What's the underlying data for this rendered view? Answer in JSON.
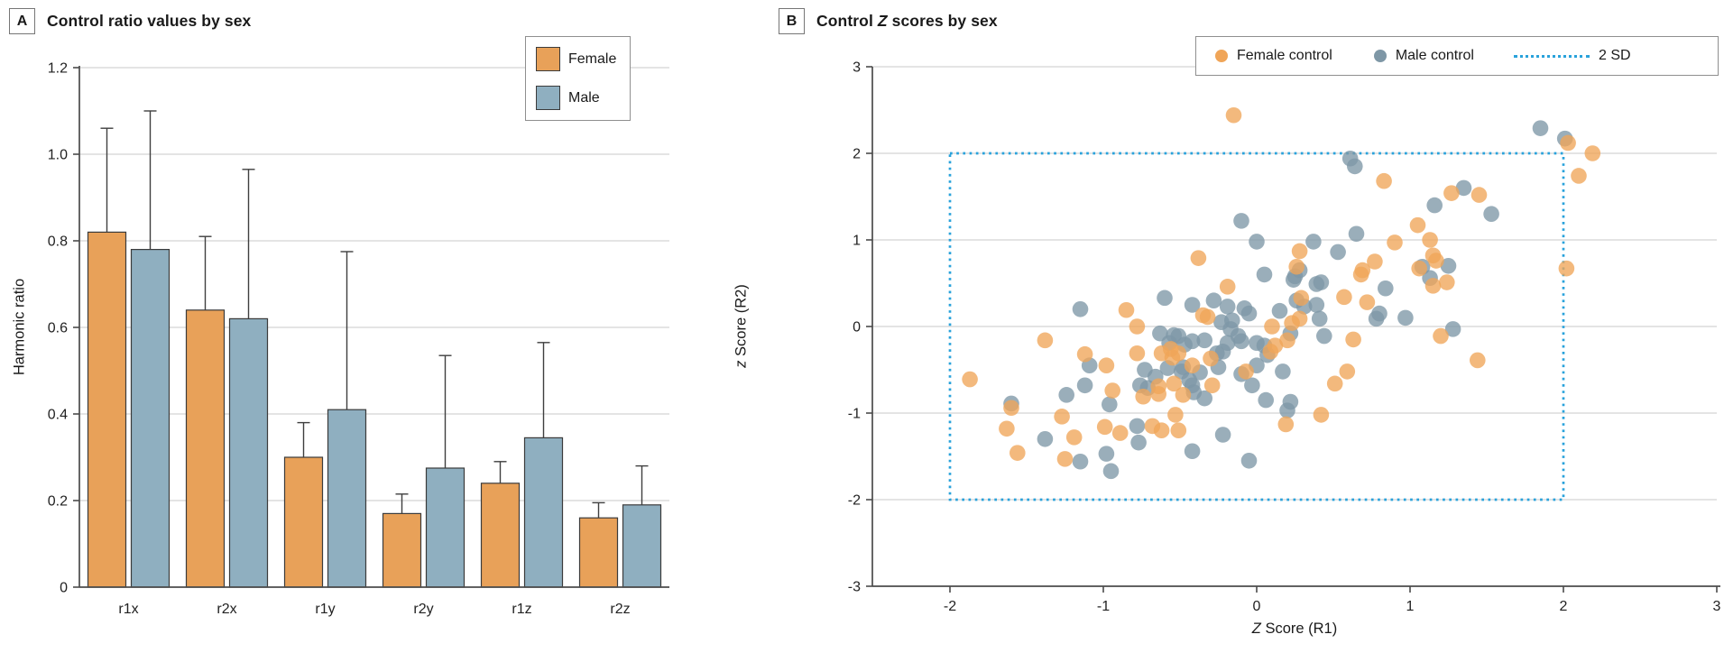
{
  "panel_a": {
    "label": "A",
    "title": "Control ratio values by sex",
    "y_axis_label": "Harmonic ratio",
    "legend": {
      "female_label": "Female",
      "male_label": "Male"
    }
  },
  "panel_b": {
    "label": "B",
    "title_prefix": "Control ",
    "title_italic": "Z",
    "title_suffix": " scores by sex",
    "y_axis_label_italic": "z",
    "y_axis_label_rest": " Score (R2)",
    "x_axis_label_italic": "Z",
    "x_axis_label_rest": " Score (R1)",
    "legend": {
      "female_label": "Female control",
      "male_label": "Male control",
      "sd_label": "2 SD"
    }
  },
  "colors": {
    "female_bar": "#e8a159",
    "male_bar": "#8fafc0",
    "bar_border": "#3b3b3b",
    "female_dot": "#f0a558",
    "male_dot": "#7e97a6",
    "sd_line": "#29a2db",
    "grid": "#dcdcdc",
    "axis": "#4b4b4b",
    "error_bar": "#3f3f3f",
    "tick_text": "#222222"
  },
  "chart_data": [
    {
      "type": "bar",
      "title": "Control ratio values by sex",
      "xlabel": "",
      "ylabel": "Harmonic ratio",
      "ylim": [
        0,
        1.2
      ],
      "yticks": [
        0,
        0.2,
        0.4,
        0.6,
        0.8,
        1.0,
        1.2
      ],
      "ytick_labels": [
        "0",
        "0.2",
        "0.4",
        "0.6",
        "0.8",
        "1.0",
        "1.2"
      ],
      "grid": "horizontal",
      "legend_position": "top-right",
      "categories": [
        "r1x",
        "r2x",
        "r1y",
        "r2y",
        "r1z",
        "r2z"
      ],
      "series": [
        {
          "name": "Female",
          "values": [
            0.82,
            0.64,
            0.3,
            0.17,
            0.24,
            0.16
          ],
          "error_top": [
            1.06,
            0.81,
            0.38,
            0.215,
            0.29,
            0.195
          ]
        },
        {
          "name": "Male",
          "values": [
            0.78,
            0.62,
            0.41,
            0.275,
            0.345,
            0.19
          ],
          "error_top": [
            1.1,
            0.965,
            0.775,
            0.535,
            0.565,
            0.28
          ]
        }
      ]
    },
    {
      "type": "scatter",
      "title": "Control Z scores by sex",
      "xlabel": "Z Score (R1)",
      "ylabel": "z Score (R2)",
      "xlim": [
        -2.5,
        3
      ],
      "ylim": [
        -3,
        3
      ],
      "xticks": [
        -2,
        -1,
        0,
        1,
        2,
        3
      ],
      "xtick_labels": [
        "-2",
        "-1",
        "0",
        "1",
        "2",
        "3"
      ],
      "yticks": [
        3,
        2,
        1,
        0,
        -1,
        -2,
        -3
      ],
      "ytick_labels": [
        "3",
        "2",
        "1",
        "0",
        "-1",
        "-2",
        "-3"
      ],
      "grid": "horizontal",
      "legend_position": "top-right",
      "sd_box": {
        "label": "2 SD",
        "x": [
          -2,
          2
        ],
        "y": [
          -2,
          2
        ]
      },
      "series": [
        {
          "name": "Female control",
          "points": [
            [
              -0.15,
              2.44
            ],
            [
              2.19,
              2.0
            ],
            [
              2.03,
              2.12
            ],
            [
              2.1,
              1.74
            ],
            [
              0.83,
              1.68
            ],
            [
              1.27,
              1.54
            ],
            [
              1.45,
              1.52
            ],
            [
              1.05,
              1.17
            ],
            [
              0.28,
              0.87
            ],
            [
              0.9,
              0.97
            ],
            [
              1.13,
              1.0
            ],
            [
              1.15,
              0.82
            ],
            [
              1.17,
              0.76
            ],
            [
              2.02,
              0.67
            ],
            [
              0.77,
              0.75
            ],
            [
              0.68,
              0.6
            ],
            [
              0.26,
              0.69
            ],
            [
              -0.38,
              0.79
            ],
            [
              0.57,
              0.34
            ],
            [
              0.72,
              0.28
            ],
            [
              0.28,
              0.09
            ],
            [
              -0.85,
              0.19
            ],
            [
              -0.78,
              0.0
            ],
            [
              -0.32,
              0.11
            ],
            [
              -0.35,
              0.13
            ],
            [
              -0.19,
              0.46
            ],
            [
              0.69,
              0.65
            ],
            [
              1.06,
              0.67
            ],
            [
              1.15,
              0.47
            ],
            [
              1.24,
              0.51
            ],
            [
              0.29,
              0.33
            ],
            [
              0.23,
              0.04
            ],
            [
              0.2,
              -0.16
            ],
            [
              0.12,
              -0.22
            ],
            [
              0.09,
              -0.29
            ],
            [
              1.2,
              -0.11
            ],
            [
              1.44,
              -0.39
            ],
            [
              0.63,
              -0.15
            ],
            [
              0.59,
              -0.52
            ],
            [
              0.51,
              -0.66
            ],
            [
              0.42,
              -1.02
            ],
            [
              0.19,
              -1.13
            ],
            [
              -0.07,
              -0.52
            ],
            [
              -1.87,
              -0.61
            ],
            [
              -1.38,
              -0.16
            ],
            [
              -1.12,
              -0.32
            ],
            [
              -0.98,
              -0.45
            ],
            [
              -0.94,
              -0.74
            ],
            [
              -1.6,
              -0.94
            ],
            [
              -1.63,
              -1.18
            ],
            [
              -1.56,
              -1.46
            ],
            [
              -1.27,
              -1.04
            ],
            [
              -1.19,
              -1.28
            ],
            [
              -1.25,
              -1.53
            ],
            [
              -0.99,
              -1.16
            ],
            [
              -0.89,
              -1.23
            ],
            [
              -0.68,
              -1.15
            ],
            [
              -0.62,
              -1.2
            ],
            [
              -0.51,
              -1.2
            ],
            [
              -0.78,
              -0.31
            ],
            [
              -0.74,
              -0.81
            ],
            [
              -0.64,
              -0.78
            ],
            [
              -0.53,
              -1.02
            ],
            [
              -0.54,
              -0.66
            ],
            [
              -0.56,
              -0.26
            ],
            [
              -0.51,
              -0.31
            ],
            [
              -0.3,
              -0.37
            ],
            [
              -0.62,
              -0.31
            ],
            [
              -0.55,
              -0.36
            ],
            [
              -0.64,
              -0.69
            ],
            [
              -0.48,
              -0.79
            ],
            [
              -0.29,
              -0.68
            ],
            [
              0.1,
              0.0
            ],
            [
              -0.42,
              -0.45
            ]
          ]
        },
        {
          "name": "Male control",
          "points": [
            [
              1.85,
              2.29
            ],
            [
              2.01,
              2.17
            ],
            [
              0.61,
              1.94
            ],
            [
              0.64,
              1.85
            ],
            [
              1.35,
              1.6
            ],
            [
              1.16,
              1.4
            ],
            [
              1.53,
              1.3
            ],
            [
              -0.1,
              1.22
            ],
            [
              0.0,
              0.98
            ],
            [
              0.65,
              1.07
            ],
            [
              0.37,
              0.98
            ],
            [
              0.53,
              0.86
            ],
            [
              1.08,
              0.69
            ],
            [
              1.25,
              0.7
            ],
            [
              0.05,
              0.6
            ],
            [
              -0.6,
              0.33
            ],
            [
              -1.15,
              0.2
            ],
            [
              0.25,
              0.58
            ],
            [
              0.39,
              0.49
            ],
            [
              0.84,
              0.44
            ],
            [
              0.26,
              0.3
            ],
            [
              0.41,
              0.09
            ],
            [
              0.78,
              0.09
            ],
            [
              1.28,
              -0.03
            ],
            [
              0.24,
              0.54
            ],
            [
              0.28,
              0.65
            ],
            [
              1.13,
              0.56
            ],
            [
              0.42,
              0.51
            ],
            [
              0.39,
              0.25
            ],
            [
              0.8,
              0.15
            ],
            [
              0.97,
              0.1
            ],
            [
              0.15,
              0.18
            ],
            [
              -0.05,
              0.15
            ],
            [
              -0.08,
              0.21
            ],
            [
              -0.19,
              0.23
            ],
            [
              -0.28,
              0.3
            ],
            [
              -0.42,
              0.25
            ],
            [
              -0.23,
              0.05
            ],
            [
              -0.17,
              -0.03
            ],
            [
              -0.16,
              0.07
            ],
            [
              -0.12,
              -0.11
            ],
            [
              0.0,
              -0.19
            ],
            [
              0.05,
              -0.22
            ],
            [
              0.07,
              -0.33
            ],
            [
              0.0,
              -0.45
            ],
            [
              -0.1,
              -0.55
            ],
            [
              -0.03,
              -0.68
            ],
            [
              0.06,
              -0.85
            ],
            [
              0.17,
              -0.52
            ],
            [
              0.22,
              -0.87
            ],
            [
              0.2,
              -0.97
            ],
            [
              0.22,
              -0.08
            ],
            [
              0.44,
              -0.11
            ],
            [
              0.31,
              0.23
            ],
            [
              -0.57,
              -0.19
            ],
            [
              -0.51,
              -0.11
            ],
            [
              -0.48,
              -0.47
            ],
            [
              -0.37,
              -0.53
            ],
            [
              -0.42,
              -0.68
            ],
            [
              -0.34,
              -0.16
            ],
            [
              -0.25,
              -0.47
            ],
            [
              -0.22,
              -0.29
            ],
            [
              -0.19,
              -0.19
            ],
            [
              -0.26,
              -0.31
            ],
            [
              -0.1,
              -0.17
            ],
            [
              -0.63,
              -0.08
            ],
            [
              -0.54,
              -0.1
            ],
            [
              -0.47,
              -0.21
            ],
            [
              -0.42,
              -0.17
            ],
            [
              -0.58,
              -0.48
            ],
            [
              -0.49,
              -0.52
            ],
            [
              -0.44,
              -0.62
            ],
            [
              -0.41,
              -0.76
            ],
            [
              -0.34,
              -0.83
            ],
            [
              -0.76,
              -0.68
            ],
            [
              -0.73,
              -0.5
            ],
            [
              -0.66,
              -0.58
            ],
            [
              -0.71,
              -0.71
            ],
            [
              -1.09,
              -0.45
            ],
            [
              -1.24,
              -0.79
            ],
            [
              -1.12,
              -0.68
            ],
            [
              -0.96,
              -0.9
            ],
            [
              -1.6,
              -0.89
            ],
            [
              -1.38,
              -1.3
            ],
            [
              -1.15,
              -1.56
            ],
            [
              -0.98,
              -1.47
            ],
            [
              -0.95,
              -1.67
            ],
            [
              -0.78,
              -1.15
            ],
            [
              -0.77,
              -1.34
            ],
            [
              -0.42,
              -1.44
            ],
            [
              -0.22,
              -1.25
            ],
            [
              -0.05,
              -1.55
            ]
          ]
        }
      ]
    }
  ]
}
